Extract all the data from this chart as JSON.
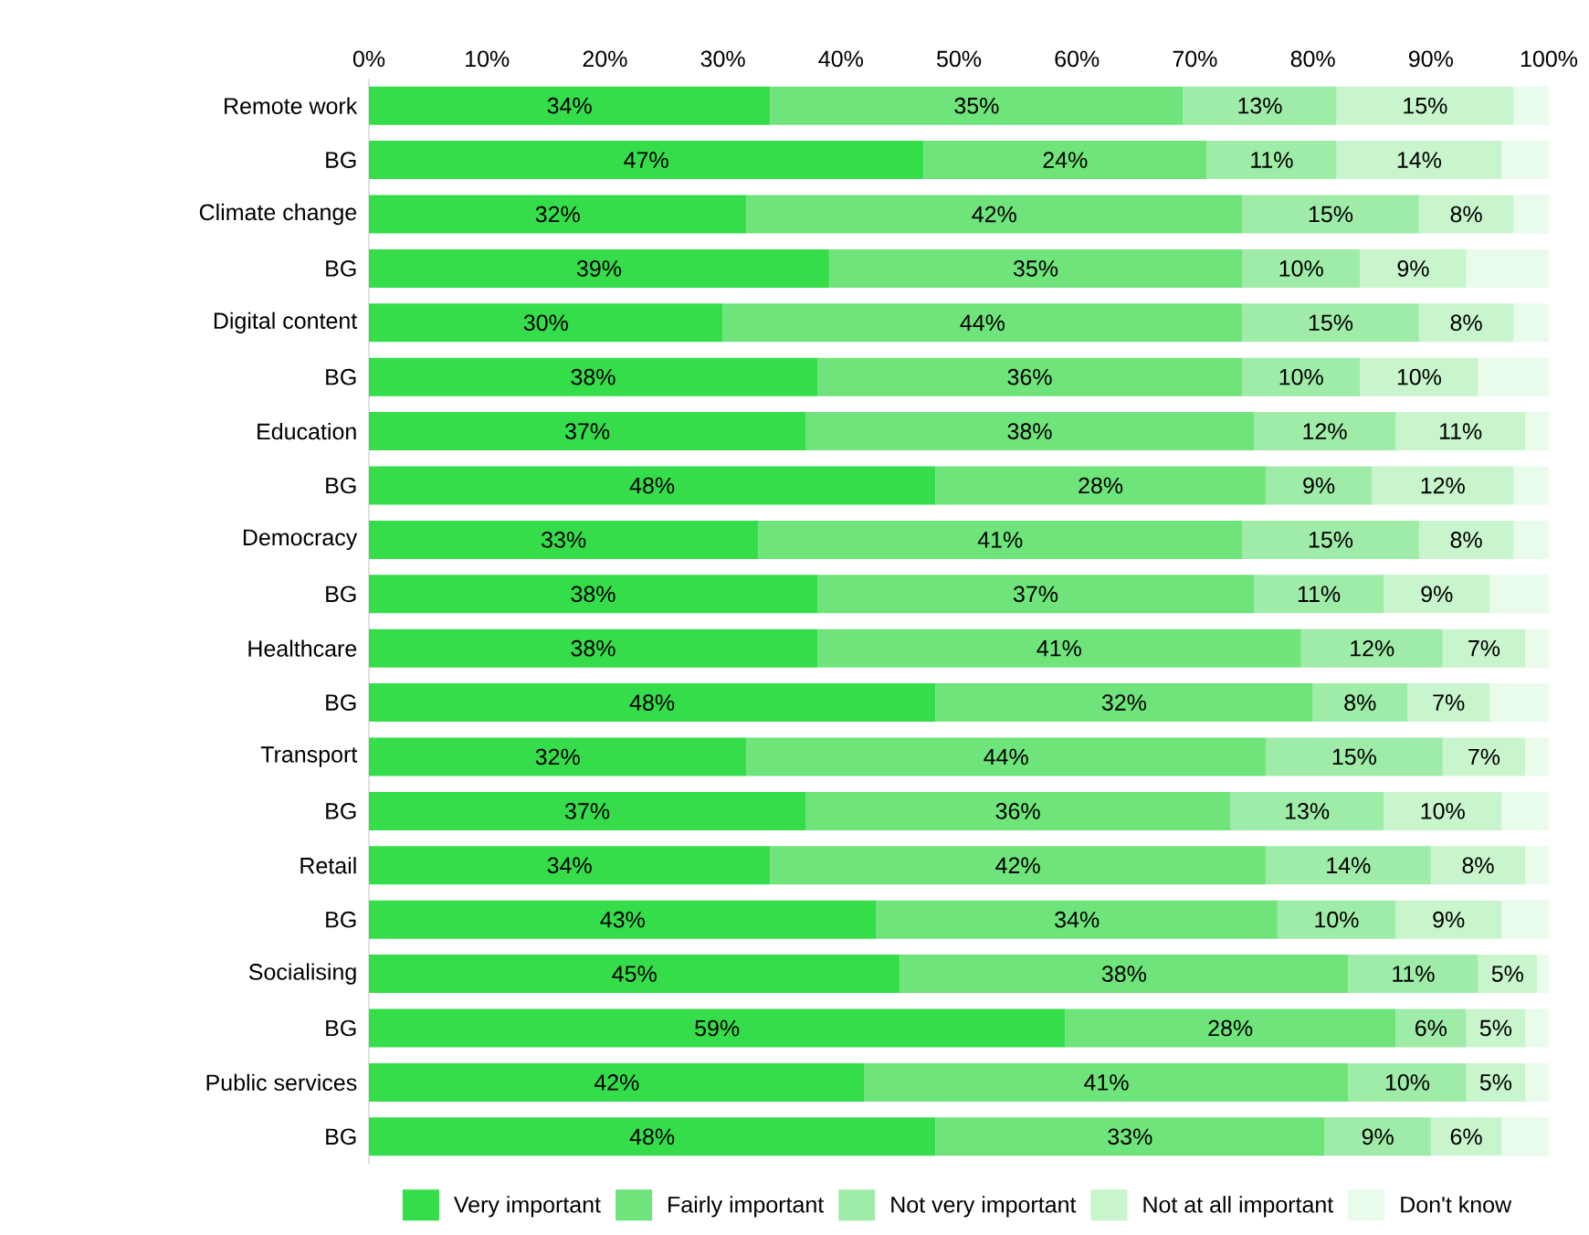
{
  "chart_data": {
    "type": "bar",
    "orientation": "horizontal",
    "stacked": true,
    "legend": "bottom",
    "categories": [
      "Remote work",
      "BG",
      "Climate change",
      "BG",
      "Digital content",
      "BG",
      "Education",
      "BG",
      "Democracy",
      "BG",
      "Healthcare",
      "BG",
      "Transport",
      "BG",
      "Retail",
      "BG",
      "Socialising",
      "BG",
      "Public services",
      "BG"
    ],
    "xlim": [
      0,
      100
    ],
    "xticks": [
      {
        "value": 0,
        "label": "0%"
      },
      {
        "value": 10,
        "label": "10%"
      },
      {
        "value": 20,
        "label": "20%"
      },
      {
        "value": 30,
        "label": "30%"
      },
      {
        "value": 40,
        "label": "40%"
      },
      {
        "value": 50,
        "label": "50%"
      },
      {
        "value": 60,
        "label": "60%"
      },
      {
        "value": 70,
        "label": "70%"
      },
      {
        "value": 80,
        "label": "80%"
      },
      {
        "value": 90,
        "label": "90%"
      },
      {
        "value": 100,
        "label": "100%"
      }
    ],
    "series": [
      {
        "name": "Very important",
        "color": "#35dd4b",
        "values": [
          34,
          47,
          32,
          39,
          30,
          38,
          37,
          48,
          33,
          38,
          38,
          48,
          32,
          37,
          34,
          43,
          45,
          59,
          42,
          48
        ],
        "value_labels": [
          "34%",
          "47%",
          "32%",
          "39%",
          "30%",
          "38%",
          "37%",
          "48%",
          "33%",
          "38%",
          "38%",
          "48%",
          "32%",
          "37%",
          "34%",
          "43%",
          "45%",
          "59%",
          "42%",
          "48%"
        ]
      },
      {
        "name": "Fairly important",
        "color": "#6fe47b",
        "values": [
          35,
          24,
          42,
          35,
          44,
          36,
          38,
          28,
          41,
          37,
          41,
          32,
          44,
          36,
          42,
          34,
          38,
          28,
          41,
          33
        ],
        "value_labels": [
          "35%",
          "24%",
          "42%",
          "35%",
          "44%",
          "36%",
          "38%",
          "28%",
          "41%",
          "37%",
          "41%",
          "32%",
          "44%",
          "36%",
          "42%",
          "34%",
          "38%",
          "28%",
          "41%",
          "33%"
        ]
      },
      {
        "name": "Not very important",
        "color": "#9feba8",
        "values": [
          13,
          11,
          15,
          10,
          15,
          10,
          12,
          9,
          15,
          11,
          12,
          8,
          15,
          13,
          14,
          10,
          11,
          6,
          10,
          9
        ],
        "value_labels": [
          "13%",
          "11%",
          "15%",
          "10%",
          "15%",
          "10%",
          "12%",
          "9%",
          "15%",
          "11%",
          "12%",
          "8%",
          "15%",
          "13%",
          "14%",
          "10%",
          "11%",
          "6%",
          "10%",
          "9%"
        ]
      },
      {
        "name": "Not at all important",
        "color": "#c9f5cd",
        "values": [
          15,
          14,
          8,
          9,
          8,
          10,
          11,
          12,
          8,
          9,
          7,
          7,
          7,
          10,
          8,
          9,
          5,
          5,
          5,
          6
        ],
        "value_labels": [
          "15%",
          "14%",
          "8%",
          "9%",
          "8%",
          "10%",
          "11%",
          "12%",
          "8%",
          "9%",
          "7%",
          "7%",
          "7%",
          "10%",
          "8%",
          "9%",
          "5%",
          "5%",
          "5%",
          "6%"
        ]
      },
      {
        "name": "Don't know",
        "color": "#e9fbeb",
        "values": [
          3,
          4,
          3,
          7,
          3,
          6,
          2,
          3,
          3,
          5,
          2,
          5,
          2,
          4,
          2,
          4,
          1,
          2,
          2,
          4
        ]
      }
    ]
  }
}
